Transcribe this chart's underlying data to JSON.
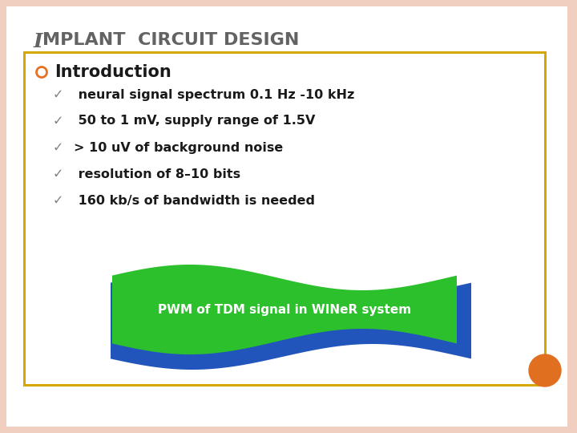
{
  "title_italic": "I",
  "title_rest": "MPLANT  CIRCUIT DESIGN",
  "title_color": "#636363",
  "title_fontsize": 18,
  "title_rest_fontsize": 16,
  "section_header": "Introduction",
  "section_bullet_color": "#e87020",
  "bullet_items": [
    " neural signal spectrum 0.1 Hz -10 kHz",
    " 50 to 1 mV, supply range of 1.5V",
    "> 10 uV of background noise",
    " resolution of 8–10 bits",
    " 160 kb/s of bandwidth is needed"
  ],
  "bullet_check_color": "#808080",
  "bullet_text_color": "#1a1a1a",
  "bullet_fontsize": 11.5,
  "section_header_fontsize": 15,
  "box_edge_color": "#d4a800",
  "box_facecolor": "#ffffff",
  "background_color": "#f0cfc0",
  "slide_background": "#ffffff",
  "banner_text": "PWM of TDM signal in WINeR system",
  "banner_text_color": "#ffffff",
  "banner_text_fontsize": 11,
  "banner_green": "#2dc02d",
  "banner_blue": "#2255bb",
  "orange_circle_color": "#e07020",
  "check_mark": "✓"
}
